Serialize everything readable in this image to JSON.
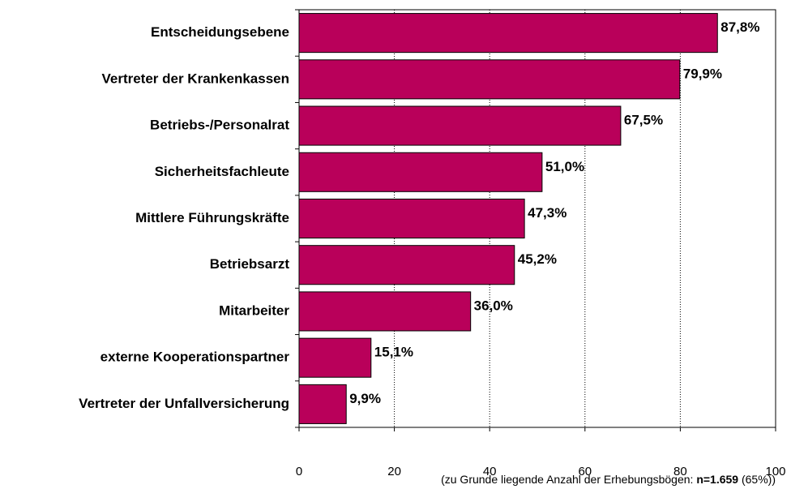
{
  "chart_data": {
    "type": "barh",
    "categories": [
      "Entscheidungsebene",
      "Vertreter der Krankenkassen",
      "Betriebs-/Personalrat",
      "Sicherheitsfachleute",
      "Mittlere Führungskräfte",
      "Betriebsarzt",
      "Mitarbeiter",
      "externe Kooperationspartner",
      "Vertreter der Unfallversicherung"
    ],
    "values": [
      87.8,
      79.9,
      67.5,
      51.0,
      47.3,
      45.2,
      36.0,
      15.1,
      9.9
    ],
    "value_labels": [
      "87,8%",
      "79,9%",
      "67,5%",
      "51,0%",
      "47,3%",
      "45,2%",
      "36,0%",
      "15,1%",
      "9,9%"
    ],
    "color": "#b9005a",
    "xlim": [
      0,
      100
    ],
    "xticks": [
      0,
      20,
      40,
      60,
      80,
      100
    ],
    "grid": true,
    "footnote": [
      "(zu Grunde liegende Anzahl der Erhebungsbögen: ",
      "n=1.659",
      " (65%))"
    ]
  }
}
